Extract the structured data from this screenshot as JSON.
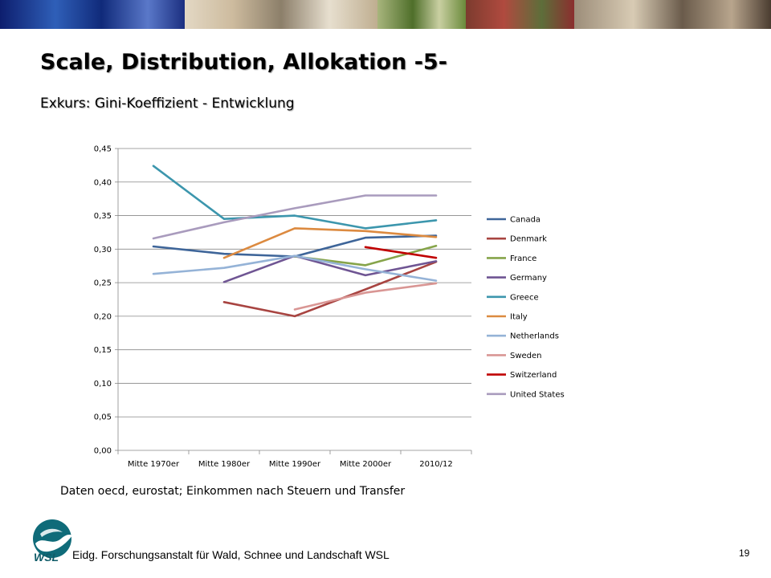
{
  "slide": {
    "title": "Scale, Distribution, Allokation -5-",
    "subtitle": "Exkurs: Gini-Koeffizient - Entwicklung",
    "note": "Daten oecd, eurostat; Einkommen nach Steuern und Transfer",
    "institute": "Eidg. Forschungsanstalt für Wald, Schnee und Landschaft WSL",
    "logo_text": "WSL",
    "page_number": "19"
  },
  "chart_data": {
    "type": "line",
    "title": "",
    "xlabel": "",
    "ylabel": "",
    "categories": [
      "Mitte 1970er",
      "Mitte 1980er",
      "Mitte 1990er",
      "Mitte 2000er",
      "2010/12"
    ],
    "ylim": [
      0,
      0.45
    ],
    "yticks": [
      "0,00",
      "0,05",
      "0,10",
      "0,15",
      "0,20",
      "0,25",
      "0,30",
      "0,35",
      "0,40",
      "0,45"
    ],
    "grid": true,
    "legend_position": "right",
    "series": [
      {
        "name": "Canada",
        "color": "#3e6599",
        "values": [
          0.304,
          0.293,
          0.289,
          0.317,
          0.32
        ]
      },
      {
        "name": "Denmark",
        "color": "#a84441",
        "values": [
          null,
          0.221,
          0.2,
          0.24,
          0.281
        ]
      },
      {
        "name": "France",
        "color": "#86a44a",
        "values": [
          null,
          null,
          0.289,
          0.276,
          0.305
        ]
      },
      {
        "name": "Germany",
        "color": "#6f5593",
        "values": [
          null,
          0.251,
          0.29,
          0.261,
          0.282
        ]
      },
      {
        "name": "Greece",
        "color": "#3c96ad",
        "values": [
          0.424,
          0.345,
          0.35,
          0.331,
          0.343
        ]
      },
      {
        "name": "Italy",
        "color": "#dc8a40",
        "values": [
          null,
          0.287,
          0.331,
          0.327,
          0.318
        ]
      },
      {
        "name": "Netherlands",
        "color": "#95b3d7",
        "values": [
          0.263,
          0.272,
          0.29,
          0.27,
          0.253
        ]
      },
      {
        "name": "Sweden",
        "color": "#d99694",
        "values": [
          null,
          null,
          0.21,
          0.235,
          0.249
        ]
      },
      {
        "name": "Switzerland",
        "color": "#c00000",
        "values": [
          null,
          null,
          null,
          0.303,
          0.287
        ]
      },
      {
        "name": "United States",
        "color": "#a99bbd",
        "values": [
          0.316,
          0.34,
          0.361,
          0.38,
          0.38
        ]
      }
    ]
  }
}
